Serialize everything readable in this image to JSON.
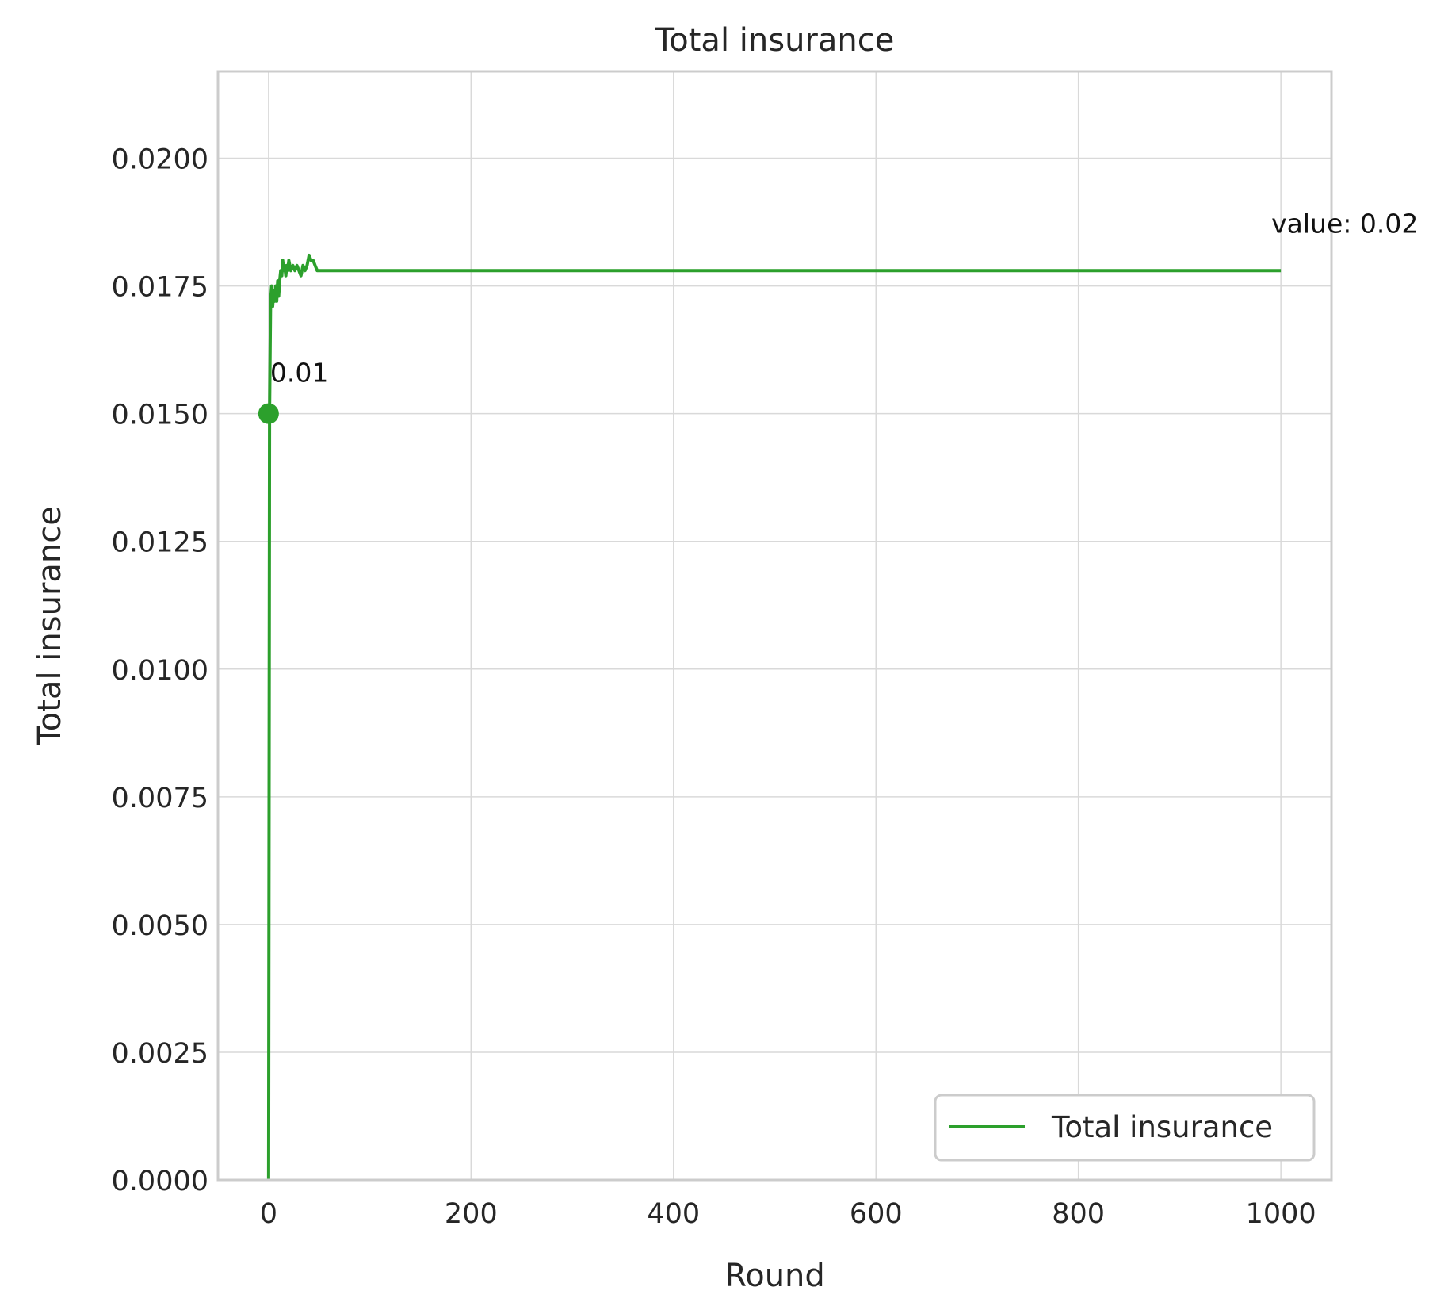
{
  "chart_data": {
    "type": "line",
    "title": "Total insurance",
    "xlabel": "Round",
    "ylabel": "Total insurance",
    "xlim": [
      -50,
      1050
    ],
    "ylim": [
      0,
      0.0217
    ],
    "xticks": [
      0,
      200,
      400,
      600,
      800,
      1000
    ],
    "xtick_labels": [
      "0",
      "200",
      "400",
      "600",
      "800",
      "1000"
    ],
    "yticks": [
      0,
      0.0025,
      0.005,
      0.0075,
      0.01,
      0.0125,
      0.015,
      0.0175,
      0.02
    ],
    "ytick_labels": [
      "0.0000",
      "0.0025",
      "0.0050",
      "0.0075",
      "0.0100",
      "0.0125",
      "0.0150",
      "0.0175",
      "0.0200"
    ],
    "grid": true,
    "legend": {
      "placement": "bottom-right",
      "entries": [
        "Total insurance"
      ]
    },
    "series": [
      {
        "name": "Total insurance",
        "color": "#2ca02c",
        "x": [
          0,
          1,
          2,
          3,
          4,
          5,
          6,
          7,
          8,
          9,
          10,
          11,
          12,
          13,
          14,
          15,
          16,
          17,
          18,
          19,
          20,
          22,
          24,
          26,
          28,
          30,
          32,
          34,
          36,
          38,
          40,
          42,
          44,
          46,
          48,
          50,
          52,
          54,
          56,
          58,
          60,
          100,
          200,
          300,
          400,
          500,
          600,
          700,
          800,
          900,
          1000
        ],
        "y": [
          0.0,
          0.015,
          0.0172,
          0.0175,
          0.0171,
          0.0174,
          0.0172,
          0.0175,
          0.0172,
          0.0176,
          0.0173,
          0.0176,
          0.0178,
          0.0177,
          0.018,
          0.0178,
          0.0179,
          0.0177,
          0.0179,
          0.0178,
          0.018,
          0.0178,
          0.0179,
          0.0178,
          0.0179,
          0.0178,
          0.0177,
          0.0179,
          0.0178,
          0.0179,
          0.0181,
          0.018,
          0.018,
          0.0179,
          0.0178,
          0.0178,
          0.0178,
          0.0178,
          0.0178,
          0.0178,
          0.0178,
          0.0178,
          0.0178,
          0.0178,
          0.0178,
          0.0178,
          0.0178,
          0.0178,
          0.0178,
          0.0178,
          0.0178
        ]
      }
    ],
    "marker": {
      "x": 0,
      "y": 0.015
    },
    "annotations": [
      {
        "text": "0.01",
        "x": 0,
        "y": 0.015
      },
      {
        "text": "value: 0.02",
        "x": 1000,
        "y": 0.0178
      }
    ]
  }
}
